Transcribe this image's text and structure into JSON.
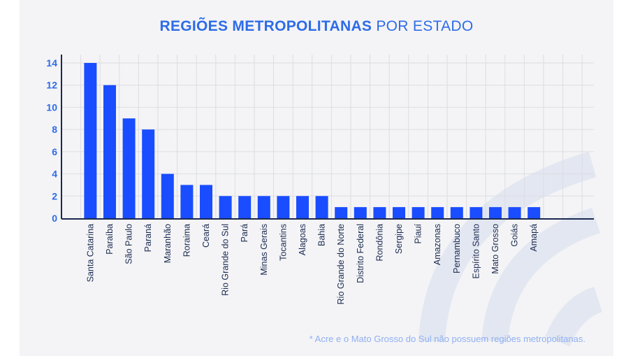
{
  "chart_data": {
    "type": "bar",
    "title_bold": "REGIÕES METROPOLITANAS",
    "title_regular": "POR ESTADO",
    "categories": [
      "Santa Catarina",
      "Paraíba",
      "São Paulo",
      "Paraná",
      "Maranhão",
      "Roraima",
      "Ceará",
      "Rio Grande do Sul",
      "Pará",
      "Minas Gerais",
      "Tocantins",
      "Alagoas",
      "Bahia",
      "Rio Grande do Norte",
      "Distrito Federal",
      "Rondônia",
      "Sergipe",
      "Piauí",
      "Amazonas",
      "Pernambuco",
      "Espírito Santo",
      "Mato Grosso",
      "Goiás",
      "Amapá"
    ],
    "values": [
      14,
      12,
      9,
      8,
      4,
      3,
      3,
      2,
      2,
      2,
      2,
      2,
      2,
      1,
      1,
      1,
      1,
      1,
      1,
      1,
      1,
      1,
      1,
      1
    ],
    "yticks": [
      "0",
      "2",
      "4",
      "6",
      "8",
      "10",
      "12",
      "14"
    ],
    "ylim": [
      0,
      14
    ],
    "grid": true,
    "xlabel": "",
    "ylabel": "",
    "footnote": "* Acre e o Mato Grosso do Sul não possuem regiões metropolitanas.",
    "colors": {
      "bar": "#1a4dff",
      "title": "#2d6ce8",
      "axis": "#1a2a50",
      "grid": "#dcdde3",
      "footnote": "#8fb0f2"
    }
  }
}
